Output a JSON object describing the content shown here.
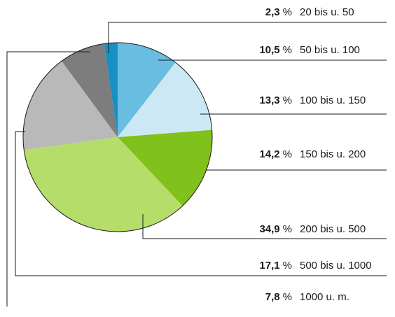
{
  "chart_data": {
    "type": "pie",
    "categories": [
      "20 bis u. 50",
      "50 bis u. 100",
      "100 bis u. 150",
      "150 bis u. 200",
      "200 bis u. 500",
      "500 bis u. 1000",
      "1000 u. m."
    ],
    "values": [
      2.3,
      10.5,
      13.3,
      14.2,
      34.9,
      17.1,
      7.8
    ],
    "value_labels": [
      "2,3",
      "10,5",
      "13,3",
      "14,2",
      "34,9",
      "17,1",
      "7,8"
    ],
    "unit": "%",
    "colors": [
      "#1a8fc4",
      "#68bde0",
      "#cde8f5",
      "#80c11c",
      "#b5dd6a",
      "#b9b9b9",
      "#7d7d7d"
    ]
  }
}
